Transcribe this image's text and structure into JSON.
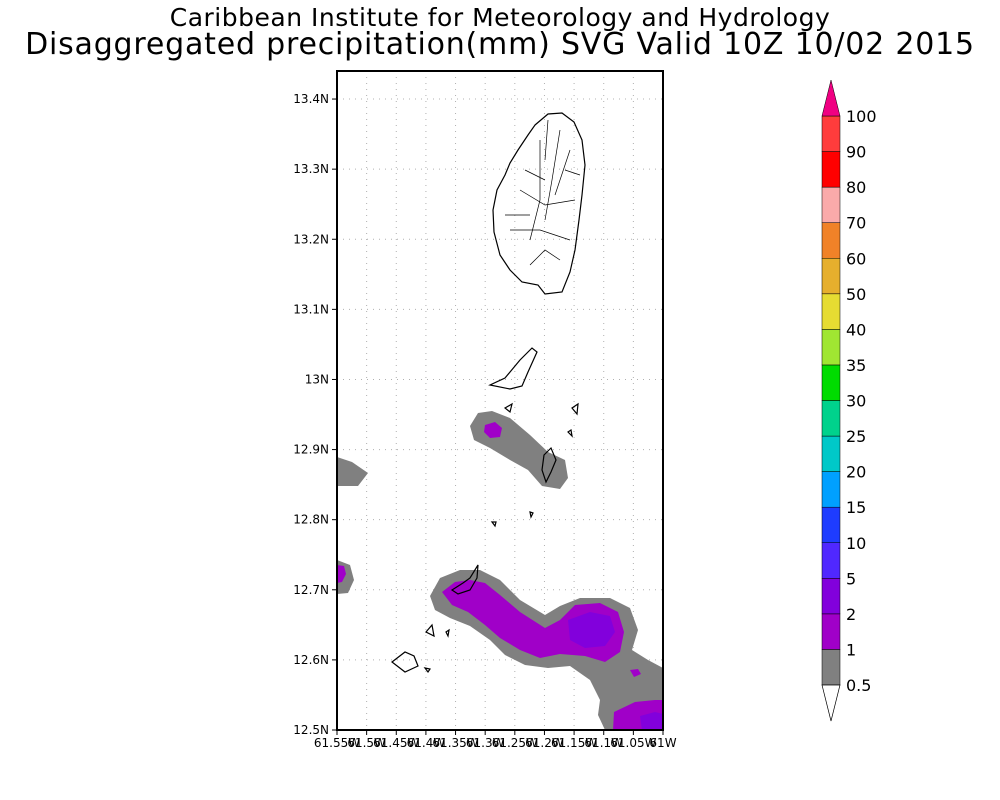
{
  "header": {
    "title_line1": "Caribbean Institute for Meteorology and Hydrology",
    "title_line2": "Disaggregated precipitation(mm) SVG Valid 10Z 10/02 2015"
  },
  "map": {
    "lat_labels": [
      "13.4N",
      "13.3N",
      "13.2N",
      "13.1N",
      "13N",
      "12.9N",
      "12.8N",
      "12.7N",
      "12.6N",
      "12.5N"
    ],
    "lon_labels": [
      "61.55W",
      "61.5W",
      "61.45W",
      "61.4W",
      "61.35W",
      "61.3W",
      "61.25W",
      "61.2W",
      "61.15W",
      "61.1W",
      "61.05W",
      "61W"
    ],
    "lat_range": [
      12.5,
      13.44
    ],
    "lon_range": [
      -61.55,
      -61.0
    ],
    "gridlines": true
  },
  "colorbar": {
    "levels": [
      "0.5",
      "1",
      "2",
      "5",
      "10",
      "15",
      "20",
      "25",
      "30",
      "35",
      "40",
      "50",
      "60",
      "70",
      "80",
      "90",
      "100"
    ],
    "colors": [
      "#808080",
      "#a000c8",
      "#8200dc",
      "#5028ff",
      "#1e3cff",
      "#00a0ff",
      "#00c8c8",
      "#00d28c",
      "#00dc00",
      "#a0e632",
      "#e6dc32",
      "#e6af2d",
      "#f08228",
      "#faaaaa",
      "#ff0000",
      "#ff3c3c",
      "#f00082"
    ],
    "under_color": "#ffffff",
    "over_color": "#f00082"
  }
}
